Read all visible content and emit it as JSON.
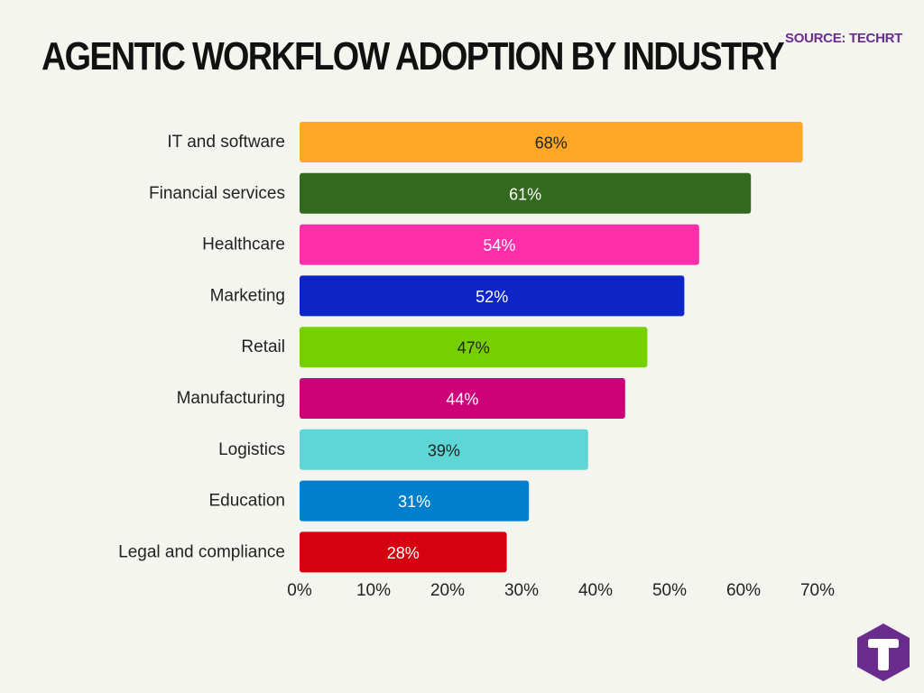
{
  "header": {
    "title": "AGENTIC WORKFLOW ADOPTION BY INDUSTRY",
    "source": "SOURCE: TECHRT"
  },
  "colors": {
    "source_text": "#6a2c8c",
    "logo": "#6a2c8c"
  },
  "logo": {
    "icon": "techrt-logo-icon"
  },
  "chart_data": {
    "type": "bar",
    "orientation": "horizontal",
    "title": "AGENTIC WORKFLOW ADOPTION BY INDUSTRY",
    "xlabel": "",
    "ylabel": "",
    "xlim": [
      0,
      70
    ],
    "xticks": [
      "0%",
      "10%",
      "20%",
      "30%",
      "40%",
      "50%",
      "60%",
      "70%"
    ],
    "grid": false,
    "legend": "none",
    "categories": [
      "IT and software",
      "Financial services",
      "Healthcare",
      "Marketing",
      "Retail",
      "Manufacturing",
      "Logistics",
      "Education",
      "Legal and compliance"
    ],
    "values": [
      68,
      61,
      54,
      52,
      47,
      44,
      39,
      31,
      28
    ],
    "value_labels": [
      "68%",
      "61%",
      "54%",
      "52%",
      "47%",
      "44%",
      "39%",
      "31%",
      "28%"
    ],
    "bar_colors": [
      "#ffa726",
      "#33691e",
      "#ff2eaa",
      "#0d24c7",
      "#76d000",
      "#cc0077",
      "#5ed6d6",
      "#0080cc",
      "#d50010"
    ],
    "label_colors": [
      "#222222",
      "#ffffff",
      "#ffffff",
      "#ffffff",
      "#222222",
      "#ffffff",
      "#222222",
      "#ffffff",
      "#ffffff"
    ]
  }
}
